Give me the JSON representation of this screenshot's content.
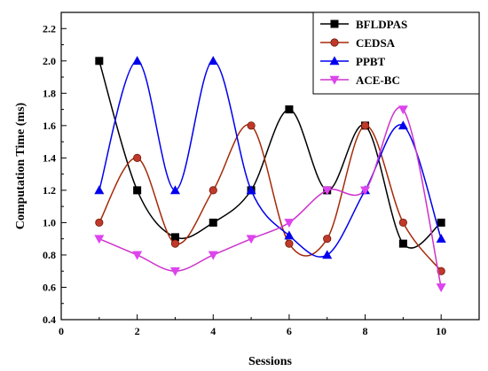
{
  "chart_data": {
    "type": "line",
    "xlabel": "Sessions",
    "ylabel": "Computation Time (ms)",
    "xlim": [
      0,
      11
    ],
    "ylim": [
      0.4,
      2.3
    ],
    "xticks": [
      "0",
      "2",
      "4",
      "6",
      "8",
      "10"
    ],
    "yticks": [
      "0.4",
      "0.6",
      "0.8",
      "1.0",
      "1.2",
      "1.4",
      "1.6",
      "1.8",
      "2.0",
      "2.2"
    ],
    "grid": false,
    "legend_position": "top-right",
    "x": [
      1,
      2,
      3,
      4,
      5,
      6,
      7,
      8,
      9,
      10
    ],
    "series": [
      {
        "name": "BFLDPAS",
        "marker": "square",
        "color": "#000000",
        "values": [
          2.0,
          1.2,
          0.91,
          1.0,
          1.2,
          1.7,
          1.2,
          1.6,
          0.87,
          1.0
        ]
      },
      {
        "name": "CEDSA",
        "marker": "circle",
        "color": "#a52a0a",
        "marker_color": "#c0392b",
        "values": [
          1.0,
          1.4,
          0.87,
          1.2,
          1.6,
          0.87,
          0.9,
          1.6,
          1.0,
          0.7
        ]
      },
      {
        "name": "PPBT",
        "marker": "triangle-up",
        "color": "#0000ee",
        "values": [
          1.2,
          2.0,
          1.2,
          2.0,
          1.2,
          0.92,
          0.8,
          1.2,
          1.6,
          0.9
        ]
      },
      {
        "name": "ACE-BC",
        "marker": "triangle-down",
        "color": "#cc33cc",
        "marker_color": "#dd44ee",
        "values": [
          0.9,
          0.8,
          0.7,
          0.8,
          0.9,
          1.0,
          1.2,
          1.2,
          1.7,
          0.6
        ]
      }
    ]
  }
}
